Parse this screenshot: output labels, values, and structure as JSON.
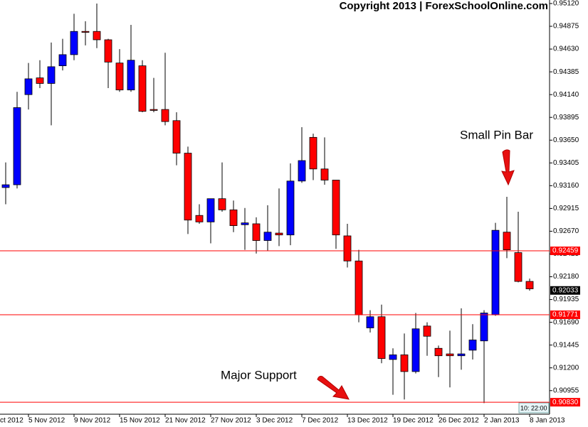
{
  "chart_data": {
    "type": "candlestick",
    "title": "Copyright 2013 | ForexSchoolOnline.com",
    "categories": [
      null,
      null,
      "5 Nov 2012",
      null,
      null,
      null,
      "9 Nov 2012",
      null,
      null,
      null,
      "15 Nov 2012",
      null,
      null,
      null,
      "21 Nov 2012",
      null,
      null,
      null,
      "27 Nov 2012",
      null,
      null,
      null,
      "3 Dec 2012",
      null,
      null,
      null,
      "7 Dec 2012",
      null,
      null,
      null,
      "13 Dec 2012",
      null,
      null,
      null,
      "19 Dec 2012",
      null,
      null,
      null,
      "26 Dec 2012",
      null,
      null,
      null,
      "2 Jan 2013",
      null,
      null,
      null,
      "8 Jan 2013"
    ],
    "partial_x_label": "ct 2012",
    "open": [
      0.9314,
      0.9317,
      0.9414,
      0.9432,
      0.9426,
      0.9445,
      0.9457,
      0.9482,
      0.9482,
      0.9473,
      0.9448,
      0.9419,
      0.9445,
      0.9398,
      0.9398,
      0.9386,
      0.9351,
      0.9284,
      0.9277,
      0.9302,
      0.929,
      0.9274,
      0.9275,
      0.9257,
      0.9265,
      0.9263,
      0.9321,
      0.9368,
      0.9334,
      0.9322,
      0.9262,
      0.9235,
      0.9163,
      0.9175,
      0.9129,
      0.9134,
      0.9116,
      0.9165,
      0.9141,
      0.9135,
      0.9133,
      0.9139,
      0.9149,
      0.9177,
      0.9266,
      0.9244,
      0.9213
    ],
    "high": [
      0.9341,
      0.9417,
      0.9448,
      0.9451,
      0.947,
      0.9474,
      0.9501,
      0.9493,
      0.9512,
      0.9474,
      0.9463,
      0.9489,
      0.9451,
      0.9432,
      0.9459,
      0.9395,
      0.9358,
      0.9296,
      0.9302,
      0.9341,
      0.93,
      0.9292,
      0.9282,
      0.9295,
      0.9313,
      0.934,
      0.9379,
      0.9372,
      0.9368,
      0.9322,
      0.9275,
      0.9247,
      0.9182,
      0.9188,
      0.9141,
      0.9157,
      0.9179,
      0.9169,
      0.9144,
      0.916,
      0.9184,
      0.9167,
      0.9182,
      0.9276,
      0.9304,
      0.9288,
      0.9216
    ],
    "low": [
      0.9296,
      0.9313,
      0.9398,
      0.9421,
      0.9381,
      0.944,
      0.9451,
      0.9467,
      0.9464,
      0.9421,
      0.9417,
      0.9417,
      0.9395,
      0.9395,
      0.9381,
      0.9338,
      0.9264,
      0.9275,
      0.9254,
      0.9288,
      0.9266,
      0.9247,
      0.9243,
      0.9246,
      0.9251,
      0.9252,
      0.9319,
      0.9322,
      0.9317,
      0.9248,
      0.9228,
      0.9169,
      0.9158,
      0.9125,
      0.9091,
      0.9086,
      0.9114,
      0.9133,
      0.911,
      0.9099,
      0.9118,
      0.9129,
      0.9082,
      0.9176,
      0.9238,
      0.9212,
      0.9203
    ],
    "close": [
      0.9317,
      0.94,
      0.9431,
      0.9426,
      0.9444,
      0.9457,
      0.9482,
      0.9481,
      0.9473,
      0.9449,
      0.9419,
      0.9451,
      0.9396,
      0.9397,
      0.9385,
      0.9351,
      0.9279,
      0.9277,
      0.9302,
      0.929,
      0.9273,
      0.9276,
      0.9257,
      0.9266,
      0.9263,
      0.9321,
      0.9343,
      0.9334,
      0.9322,
      0.9263,
      0.9235,
      0.9177,
      0.9175,
      0.913,
      0.9134,
      0.9116,
      0.9162,
      0.9154,
      0.9133,
      0.9133,
      0.9135,
      0.915,
      0.9179,
      0.9268,
      0.9247,
      0.9213,
      0.9205
    ],
    "up_color": "#0000ff",
    "down_color": "#ff0000",
    "ylim": [
      0.90701,
      0.95158
    ],
    "yticks": [
      {
        "value": 0.9512,
        "label": "0.95120"
      },
      0.94875,
      {
        "value": 0.9463,
        "label": "0.94630"
      },
      0.94385,
      {
        "value": 0.9414,
        "label": "0.94140"
      },
      0.93895,
      {
        "value": 0.9365,
        "label": "0.93650"
      },
      0.93405,
      {
        "value": 0.9316,
        "label": "0.93160"
      },
      0.92915,
      {
        "value": 0.9267,
        "label": "0.92670"
      },
      0.92425,
      {
        "value": 0.9218,
        "label": "0.92180"
      },
      0.91935,
      {
        "value": 0.9169,
        "label": "0.91690"
      },
      0.91445,
      {
        "value": 0.912,
        "label": "0.91200"
      },
      0.90955
    ],
    "hlines": [
      0.92459,
      0.91771,
      {
        "value": 0.9083,
        "label": "0.90830"
      }
    ],
    "hline_color": "#ff0000",
    "current_price": 0.92033,
    "time_label": "10: 22:00",
    "annotations": [
      "Small Pin Bar",
      "Major Support"
    ]
  }
}
